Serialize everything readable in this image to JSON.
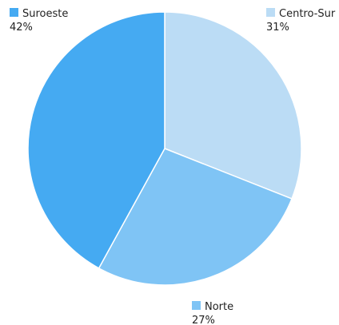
{
  "chart_data": {
    "type": "pie",
    "slices": [
      {
        "label": "Centro-Sur",
        "value": 31,
        "display": "31%",
        "color": "#bbdcf5"
      },
      {
        "label": "Norte",
        "value": 27,
        "display": "27%",
        "color": "#7fc4f5"
      },
      {
        "label": "Suroeste",
        "value": 42,
        "display": "42%",
        "color": "#45aaf2"
      }
    ],
    "start": "12 o'clock",
    "direction": "clockwise",
    "legend_placement": "labels beside each slice"
  }
}
